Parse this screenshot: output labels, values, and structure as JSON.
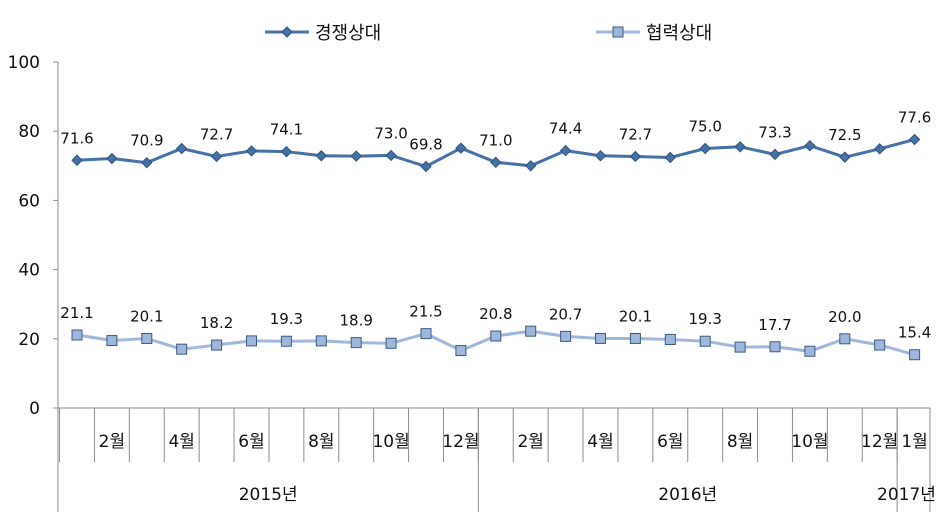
{
  "chart_data": {
    "type": "line",
    "title": "",
    "xlabel": "",
    "ylabel": "",
    "ylim": [
      0,
      100
    ],
    "yticks": [
      0,
      20,
      40,
      60,
      80,
      100
    ],
    "grid": false,
    "legend_position": "top",
    "month_labels": [
      "",
      "2월",
      "",
      "4월",
      "",
      "6월",
      "",
      "8월",
      "",
      "10월",
      "",
      "12월",
      "",
      "2월",
      "",
      "4월",
      "",
      "6월",
      "",
      "8월",
      "",
      "10월",
      "",
      "12월",
      "1월"
    ],
    "year_groups": [
      {
        "label": "2015년",
        "start": 0,
        "count": 12
      },
      {
        "label": "2016년",
        "start": 12,
        "count": 12
      },
      {
        "label": "2017년",
        "start": 24,
        "count": 1
      }
    ],
    "series": [
      {
        "name": "경쟁상대",
        "color": "#4472a8",
        "marker": "diamond",
        "values": [
          71.6,
          72.1,
          70.9,
          75.0,
          72.7,
          74.3,
          74.1,
          72.9,
          72.8,
          73.0,
          69.8,
          75.1,
          71.0,
          70.0,
          74.4,
          72.9,
          72.7,
          72.4,
          75.0,
          75.5,
          73.3,
          75.8,
          72.5,
          74.9,
          77.6
        ],
        "labels": [
          "71.6",
          "",
          "70.9",
          "",
          "72.7",
          "",
          "74.1",
          "",
          "",
          "73.0",
          "69.8",
          "",
          "71.0",
          "",
          "74.4",
          "",
          "72.7",
          "",
          "75.0",
          "",
          "73.3",
          "",
          "72.5",
          "",
          "77.6"
        ]
      },
      {
        "name": "협력상대",
        "color": "#9db8dc",
        "marker": "square",
        "values": [
          21.1,
          19.5,
          20.1,
          17.0,
          18.2,
          19.4,
          19.3,
          19.4,
          18.9,
          18.7,
          21.5,
          16.6,
          20.8,
          22.2,
          20.7,
          20.1,
          20.1,
          19.8,
          19.3,
          17.6,
          17.7,
          16.4,
          20.0,
          18.2,
          15.4
        ],
        "labels": [
          "21.1",
          "",
          "20.1",
          "",
          "18.2",
          "",
          "19.3",
          "",
          "18.9",
          "",
          "21.5",
          "",
          "20.8",
          "",
          "20.7",
          "",
          "20.1",
          "",
          "19.3",
          "",
          "17.7",
          "",
          "20.0",
          "",
          "15.4"
        ]
      }
    ]
  }
}
